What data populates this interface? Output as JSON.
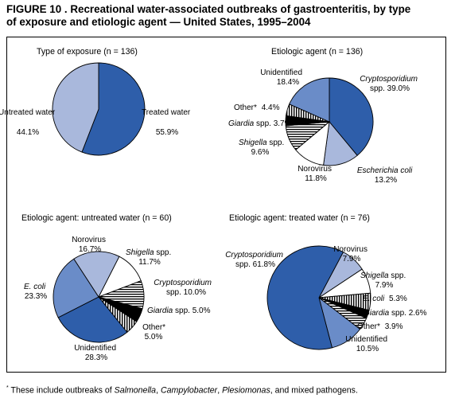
{
  "figure": {
    "title_line1": "FIGURE 10 .  Recreational water-associated outbreaks of gastroenteritis, by type",
    "title_line2": "of exposure and etiologic agent — United States, 1995–2004",
    "footnote_mark": "*",
    "footnote_prefix": " These include outbreaks of ",
    "footnote_organisms": [
      "Salmonella",
      "Campylobacter",
      "Plesiomonas"
    ],
    "footnote_sep": ", ",
    "footnote_suffix": ", and mixed pathogens."
  },
  "chart_data": [
    {
      "type": "pie",
      "title": "Type of exposure (n = 136)",
      "slices": [
        {
          "label": "Treated water",
          "value": 55.9,
          "value_text": "55.9%",
          "color": "#2e5eaa"
        },
        {
          "label": "Untreated water",
          "value": 44.1,
          "value_text": "44.1%",
          "color": "#a9b8dc"
        }
      ]
    },
    {
      "type": "pie",
      "title": "Etiologic agent (n = 136)",
      "slices": [
        {
          "label": "Cryptosporidium spp.",
          "value": 39.0,
          "value_text": "39.0%",
          "color": "#2e5eaa"
        },
        {
          "label": "Escherichia coli",
          "value": 13.2,
          "value_text": "13.2%",
          "color": "#a9b8dc"
        },
        {
          "label": "Norovirus",
          "value": 11.8,
          "value_text": "11.8%",
          "color": "#ffffff"
        },
        {
          "label": "Shigella spp.",
          "value": 9.6,
          "value_text": "9.6%",
          "color": "horizontal-stripes"
        },
        {
          "label": "Giardia spp.",
          "value": 3.7,
          "value_text": "3.7%",
          "color": "#000000"
        },
        {
          "label": "Other*",
          "value": 4.4,
          "value_text": "4.4%",
          "color": "vertical-stripes"
        },
        {
          "label": "Unidentified",
          "value": 18.4,
          "value_text": "18.4%",
          "color": "#6a8cc8"
        }
      ]
    },
    {
      "type": "pie",
      "title": "Etiologic agent: untreated water (n = 60)",
      "slices": [
        {
          "label": "Shigella spp.",
          "value": 11.7,
          "value_text": "11.7%",
          "color": "#ffffff"
        },
        {
          "label": "Cryptosporidium spp.",
          "value": 10.0,
          "value_text": "10.0%",
          "color": "horizontal-stripes"
        },
        {
          "label": "Giardia spp.",
          "value": 5.0,
          "value_text": "5.0%",
          "color": "#000000"
        },
        {
          "label": "Other*",
          "value": 5.0,
          "value_text": "5.0%",
          "color": "vertical-stripes"
        },
        {
          "label": "Unidentified",
          "value": 28.3,
          "value_text": "28.3%",
          "color": "#2e5eaa"
        },
        {
          "label": "E. coli",
          "value": 23.3,
          "value_text": "23.3%",
          "color": "#6a8cc8"
        },
        {
          "label": "Norovirus",
          "value": 16.7,
          "value_text": "16.7%",
          "color": "#a9b8dc"
        }
      ]
    },
    {
      "type": "pie",
      "title": "Etiologic agent: treated water (n = 76)",
      "slices": [
        {
          "label": "Norovirus",
          "value": 7.9,
          "value_text": "7.9%",
          "color": "#a9b8dc"
        },
        {
          "label": "Shigella spp.",
          "value": 7.9,
          "value_text": "7.9%",
          "color": "#ffffff"
        },
        {
          "label": "E. coli",
          "value": 5.3,
          "value_text": "5.3%",
          "color": "vertical-stripes"
        },
        {
          "label": "Giardia spp.",
          "value": 2.6,
          "value_text": "2.6%",
          "color": "#000000"
        },
        {
          "label": "Other*",
          "value": 3.9,
          "value_text": "3.9%",
          "color": "horizontal-stripes"
        },
        {
          "label": "Unidentified",
          "value": 10.5,
          "value_text": "10.5%",
          "color": "#6a8cc8"
        },
        {
          "label": "Cryptosporidium spp.",
          "value": 61.8,
          "value_text": "61.8%",
          "color": "#2e5eaa"
        }
      ]
    }
  ]
}
